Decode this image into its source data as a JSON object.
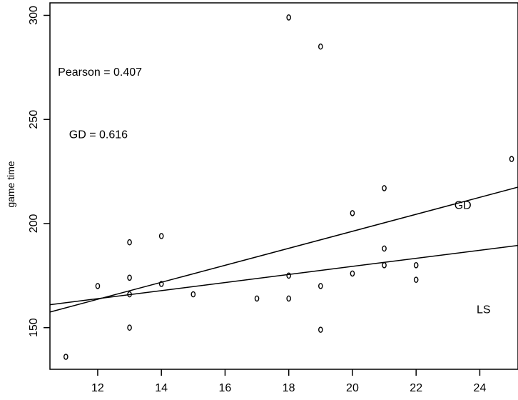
{
  "chart_data": {
    "type": "scatter",
    "title": "",
    "xlabel": "",
    "ylabel": "game time",
    "xlim": [
      10.5,
      25.2
    ],
    "ylim": [
      130,
      306
    ],
    "xticks": [
      12,
      14,
      16,
      18,
      20,
      22,
      24
    ],
    "yticks": [
      150,
      200,
      250,
      300
    ],
    "grid": false,
    "points": [
      {
        "x": 11,
        "y": 136
      },
      {
        "x": 12,
        "y": 170
      },
      {
        "x": 13,
        "y": 191
      },
      {
        "x": 13,
        "y": 174
      },
      {
        "x": 13,
        "y": 166
      },
      {
        "x": 13,
        "y": 150
      },
      {
        "x": 14,
        "y": 194
      },
      {
        "x": 14,
        "y": 171
      },
      {
        "x": 15,
        "y": 166
      },
      {
        "x": 17,
        "y": 164
      },
      {
        "x": 18,
        "y": 299
      },
      {
        "x": 18,
        "y": 175
      },
      {
        "x": 18,
        "y": 164
      },
      {
        "x": 19,
        "y": 285
      },
      {
        "x": 19,
        "y": 170
      },
      {
        "x": 19,
        "y": 149
      },
      {
        "x": 20,
        "y": 205
      },
      {
        "x": 20,
        "y": 176
      },
      {
        "x": 21,
        "y": 217
      },
      {
        "x": 21,
        "y": 188
      },
      {
        "x": 21,
        "y": 180
      },
      {
        "x": 22,
        "y": 180
      },
      {
        "x": 22,
        "y": 173
      },
      {
        "x": 25,
        "y": 231
      }
    ],
    "lines": [
      {
        "name": "GD",
        "x": [
          10.5,
          25.2
        ],
        "y": [
          157.5,
          217.5
        ]
      },
      {
        "name": "LS",
        "x": [
          10.5,
          25.2
        ],
        "y": [
          161.0,
          189.5
        ]
      }
    ],
    "line_labels": [
      {
        "text": "GD",
        "x": 23.2,
        "y": 209
      },
      {
        "text": "LS",
        "x": 23.9,
        "y": 159
      }
    ],
    "annotations": [
      {
        "text": "Pearson = 0.407",
        "x": 10.75,
        "y": 273
      },
      {
        "text": "GD = 0.616",
        "x": 11.1,
        "y": 243
      }
    ]
  }
}
